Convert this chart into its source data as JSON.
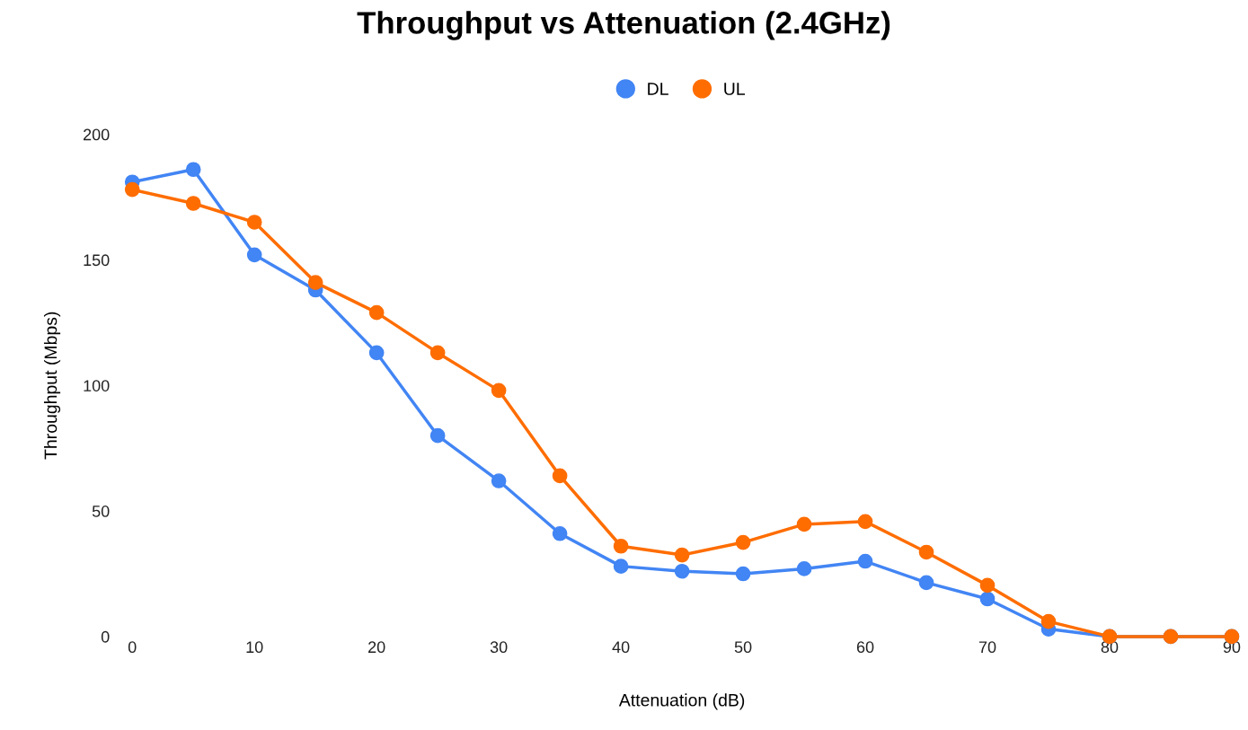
{
  "chart_data": {
    "type": "line",
    "title": "Throughput vs Attenuation (2.4GHz)",
    "xlabel": "Attenuation (dB)",
    "ylabel": "Throughput (Mbps)",
    "x": [
      0,
      5,
      10,
      15,
      20,
      25,
      30,
      35,
      40,
      45,
      50,
      55,
      60,
      65,
      70,
      75,
      80,
      85,
      90
    ],
    "series": [
      {
        "name": "DL",
        "color": "#4285f4",
        "values": [
          181,
          186,
          152,
          138,
          113,
          80,
          62,
          41,
          28,
          26,
          25,
          27,
          30,
          21.5,
          15,
          3,
          0,
          0,
          0
        ]
      },
      {
        "name": "UL",
        "color": "#ff6d01",
        "values": [
          178,
          172.5,
          165,
          141,
          129,
          113,
          98,
          64,
          36,
          32.5,
          37.5,
          44.7,
          45.8,
          33.6,
          20.4,
          6,
          0,
          0,
          0
        ]
      }
    ],
    "xlim": [
      0,
      90
    ],
    "xticks": [
      0,
      10,
      20,
      30,
      40,
      50,
      60,
      70,
      80,
      90
    ],
    "ylim": [
      0,
      200
    ],
    "yticks": [
      0,
      50,
      100,
      150,
      200
    ],
    "grid": false,
    "legend": "top",
    "marker": "circle",
    "line_style": "solid"
  }
}
